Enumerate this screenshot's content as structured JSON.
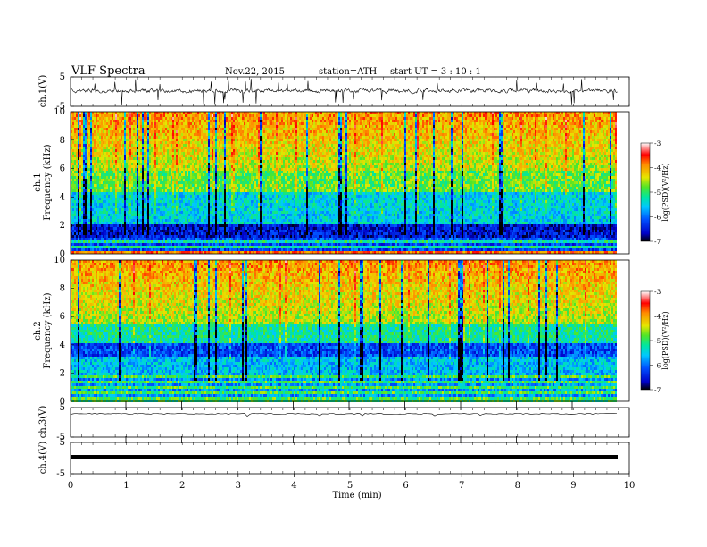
{
  "header": {
    "title": "VLF  Spectra",
    "date": "Nov.22, 2015",
    "station": "station=ATH",
    "start": "start  UT  =   3  : 10 : 1"
  },
  "chart_data": [
    {
      "type": "line",
      "panel": "ch1-waveform",
      "ylabel": "ch.1(V)",
      "ylim": [
        -5,
        5
      ],
      "yticks": [
        "5",
        "-5"
      ],
      "xlim": [
        0,
        10
      ]
    },
    {
      "type": "heatmap",
      "panel": "ch1-spectrogram",
      "ylabel": "ch.1",
      "ylabel2": "Frequency  (kHz)",
      "ylim": [
        0,
        10
      ],
      "yticks": [
        "0",
        "2",
        "4",
        "6",
        "8",
        "10"
      ],
      "colorbar": {
        "label": "log(PSD)(V²/Hz)",
        "range": [
          -7,
          -3
        ],
        "ticks": [
          "-3",
          "-4",
          "-5",
          "-6",
          "-7"
        ]
      }
    },
    {
      "type": "heatmap",
      "panel": "ch2-spectrogram",
      "ylabel": "ch.2",
      "ylabel2": "Frequency  (kHz)",
      "ylim": [
        0,
        10
      ],
      "yticks": [
        "0",
        "2",
        "4",
        "6",
        "8",
        "10"
      ],
      "colorbar": {
        "label": "log(PSD)(V²/Hz)",
        "range": [
          -7,
          -3
        ],
        "ticks": [
          "-3",
          "-4",
          "-5",
          "-6",
          "-7"
        ]
      }
    },
    {
      "type": "line",
      "panel": "ch3-waveform",
      "ylabel": "ch.3(V)",
      "ylim": [
        -5,
        5
      ],
      "yticks": [
        "5",
        "-5"
      ]
    },
    {
      "type": "line",
      "panel": "ch4-waveform",
      "ylabel": "ch.4(V)",
      "ylim": [
        -5,
        5
      ],
      "yticks": [
        "5",
        "-5"
      ]
    }
  ],
  "xaxis": {
    "label": "Time  (min)",
    "range": [
      0,
      10
    ],
    "ticks": [
      "0",
      "1",
      "2",
      "3",
      "4",
      "5",
      "6",
      "7",
      "8",
      "9",
      "10"
    ]
  }
}
